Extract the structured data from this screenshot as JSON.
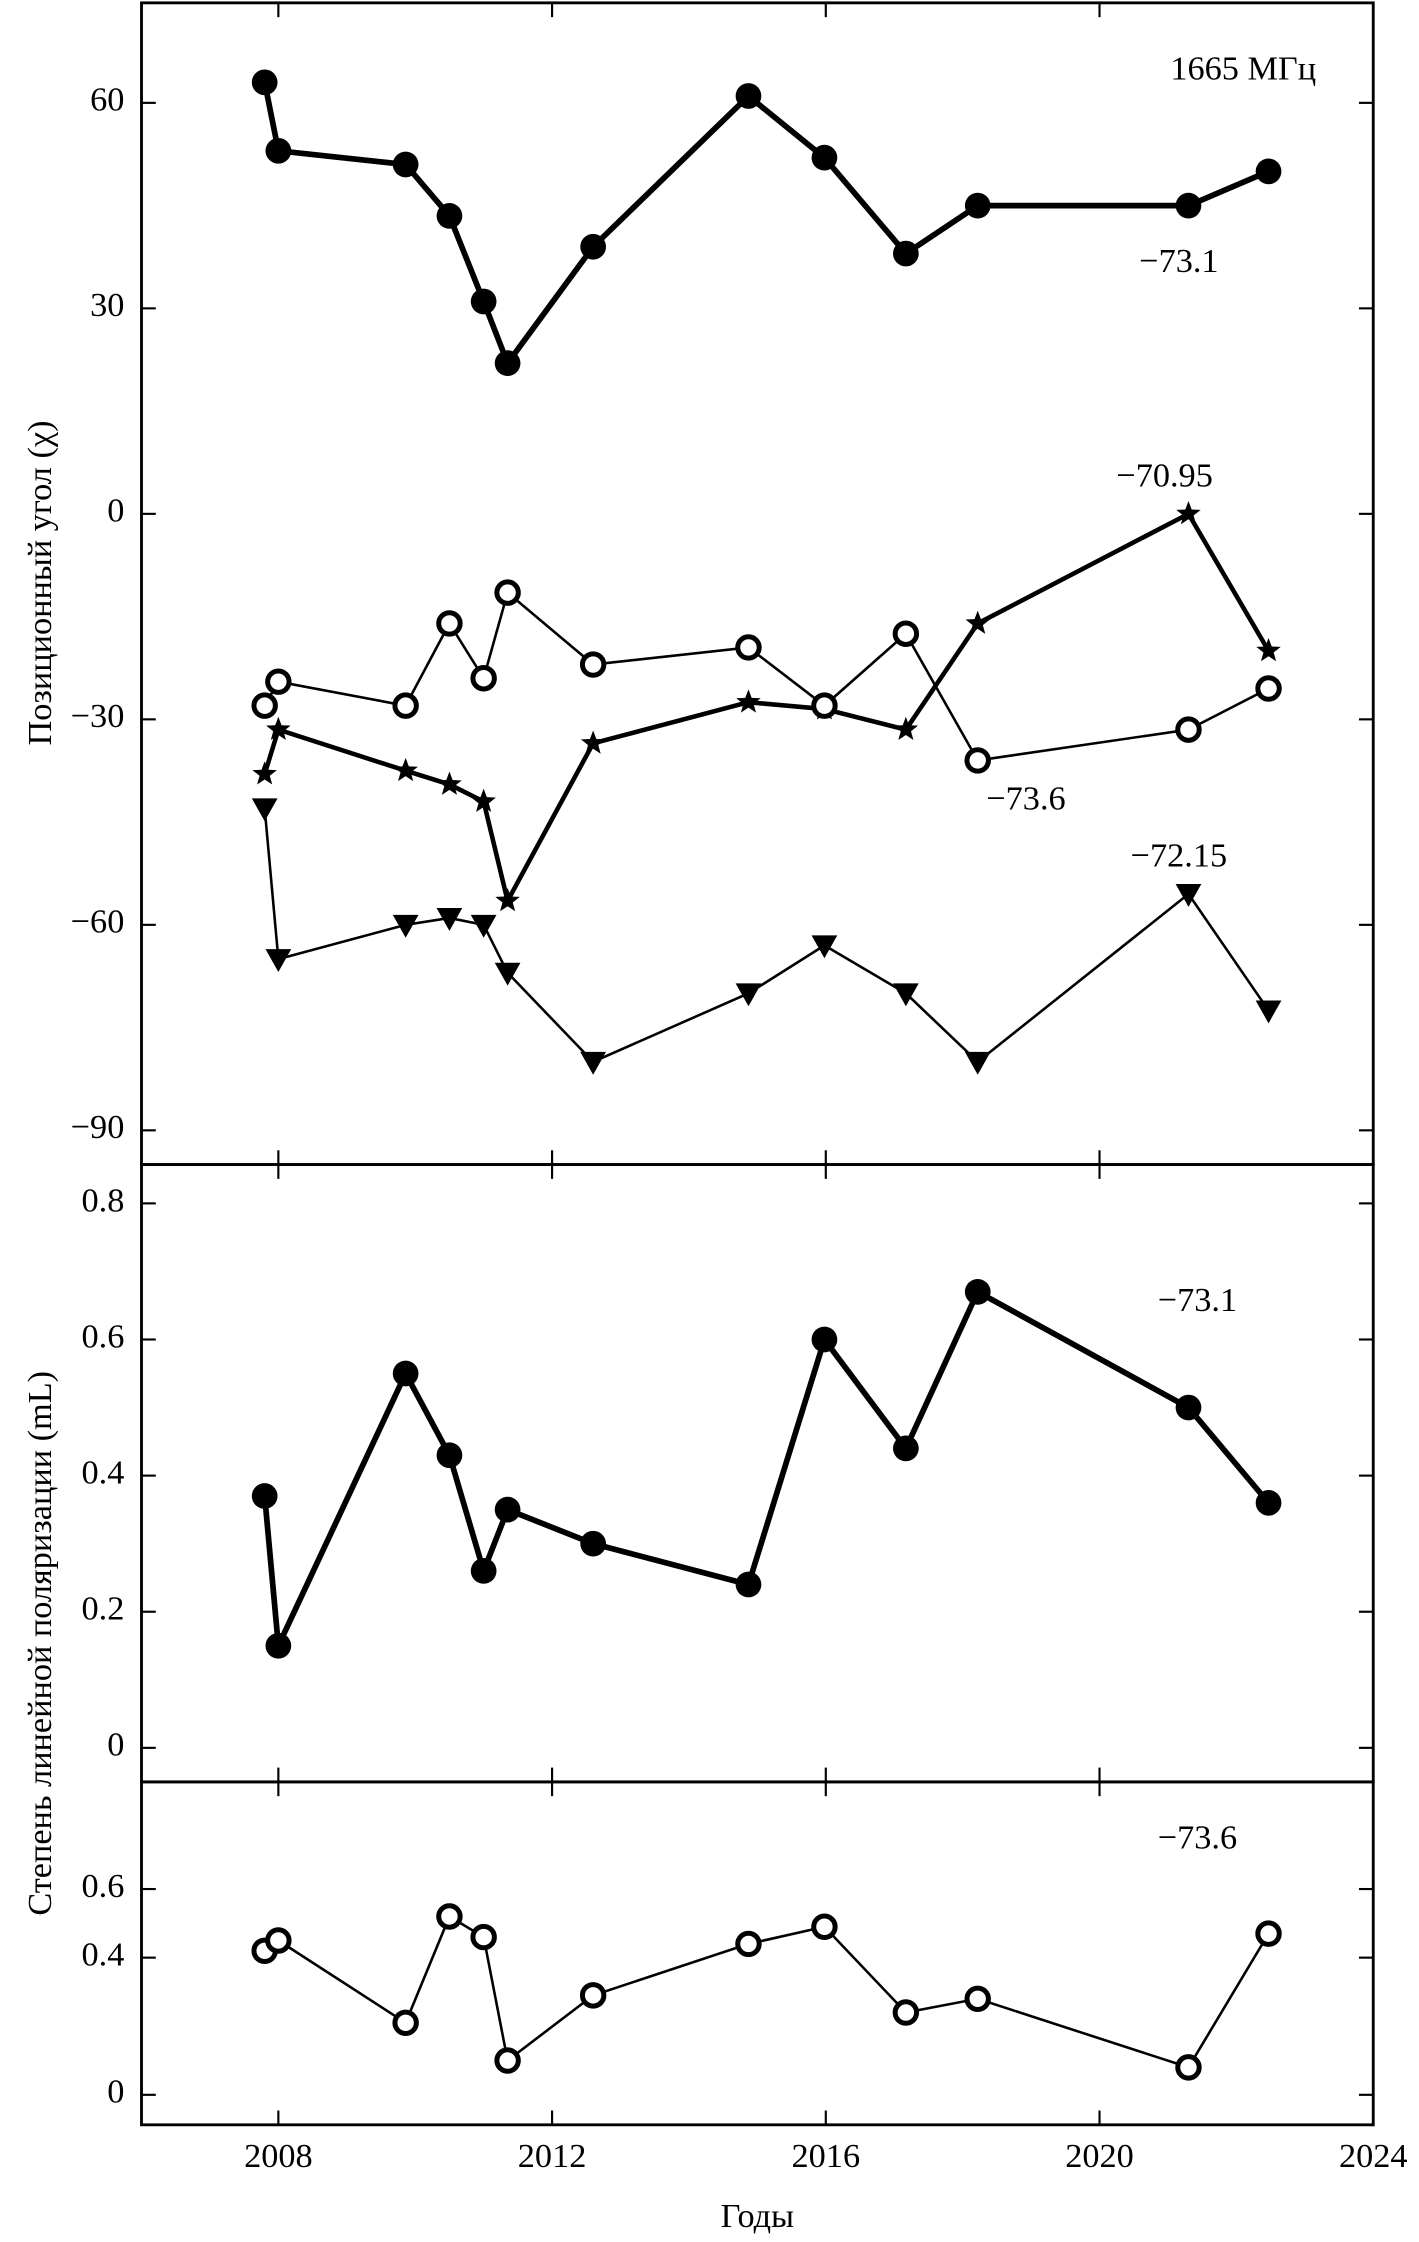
{
  "chart_data": [
    {
      "type": "line",
      "annotation": "1665 МГц",
      "ylabel": "Позиционный угол (χ)",
      "x": [
        2007.8,
        2008.0,
        2009.86,
        2010.5,
        2011.0,
        2011.35,
        2012.6,
        2014.87,
        2015.98,
        2017.17,
        2018.22,
        2021.3,
        2022.47
      ],
      "xlim": [
        2006,
        2024
      ],
      "xticks": [
        2008,
        2012,
        2016,
        2020,
        2024
      ],
      "ylim": [
        -95,
        74.6
      ],
      "yticks": [
        60,
        30,
        0,
        -30,
        -60,
        -90
      ],
      "series": [
        {
          "name": "−73.1",
          "color": "#000000",
          "marker": "circle-filled",
          "values": [
            63,
            53,
            51,
            43.5,
            31,
            22,
            39,
            61,
            52,
            38,
            45,
            45,
            50
          ]
        },
        {
          "name": "−70.95",
          "color": "#000000",
          "marker": "star",
          "values": [
            -38,
            -31.5,
            -37.5,
            -39.5,
            -42,
            -56.5,
            -33.5,
            -27.5,
            -28.5,
            -31.5,
            -16,
            0,
            -20
          ]
        },
        {
          "name": "−73.6",
          "color": "#000000",
          "marker": "circle-open",
          "values": [
            -28,
            -24.5,
            -28,
            -16,
            -24,
            -11.5,
            -22,
            -19.5,
            -28,
            -17.5,
            -36,
            -31.5,
            -25.5
          ]
        },
        {
          "name": "−72.15",
          "color": "#000000",
          "marker": "triangle-down",
          "values": [
            -43,
            -65,
            -60,
            -59,
            -60,
            -67,
            -80,
            -70,
            -63,
            -70,
            -80,
            -55.5,
            -72.5
          ]
        }
      ]
    },
    {
      "type": "line",
      "ylabel": "Степень линейной поляризации (mL)",
      "x": [
        2007.8,
        2008.0,
        2009.86,
        2010.5,
        2011.0,
        2011.35,
        2012.6,
        2014.87,
        2015.98,
        2017.17,
        2018.22,
        2021.3,
        2022.47
      ],
      "xlim": [
        2006,
        2024
      ],
      "xticks": [
        2008,
        2012,
        2016,
        2020,
        2024
      ],
      "ylim": [
        -0.05,
        0.857
      ],
      "yticks": [
        0.8,
        0.6,
        0.4,
        0.2,
        0
      ],
      "series": [
        {
          "name": "−73.1",
          "color": "#000000",
          "marker": "circle-filled",
          "values": [
            0.37,
            0.15,
            0.55,
            0.43,
            0.26,
            0.35,
            0.3,
            0.24,
            0.6,
            0.44,
            0.67,
            0.5,
            0.36
          ]
        }
      ]
    },
    {
      "type": "line",
      "xlabel": "Годы",
      "x": [
        2007.8,
        2008.0,
        2009.86,
        2010.5,
        2011.0,
        2011.35,
        2012.6,
        2014.87,
        2015.98,
        2017.17,
        2018.22,
        2021.3,
        2022.47
      ],
      "xlim": [
        2006,
        2024
      ],
      "xticks": [
        2008,
        2012,
        2016,
        2020,
        2024
      ],
      "ylim": [
        -0.0875,
        0.9125
      ],
      "yticks": [
        0.6,
        0.4,
        0
      ],
      "series": [
        {
          "name": "−73.6",
          "color": "#000000",
          "marker": "circle-open",
          "values": [
            0.42,
            0.45,
            0.21,
            0.52,
            0.46,
            0.1,
            0.29,
            0.44,
            0.49,
            0.24,
            0.28,
            0.08,
            0.47
          ]
        }
      ]
    }
  ]
}
